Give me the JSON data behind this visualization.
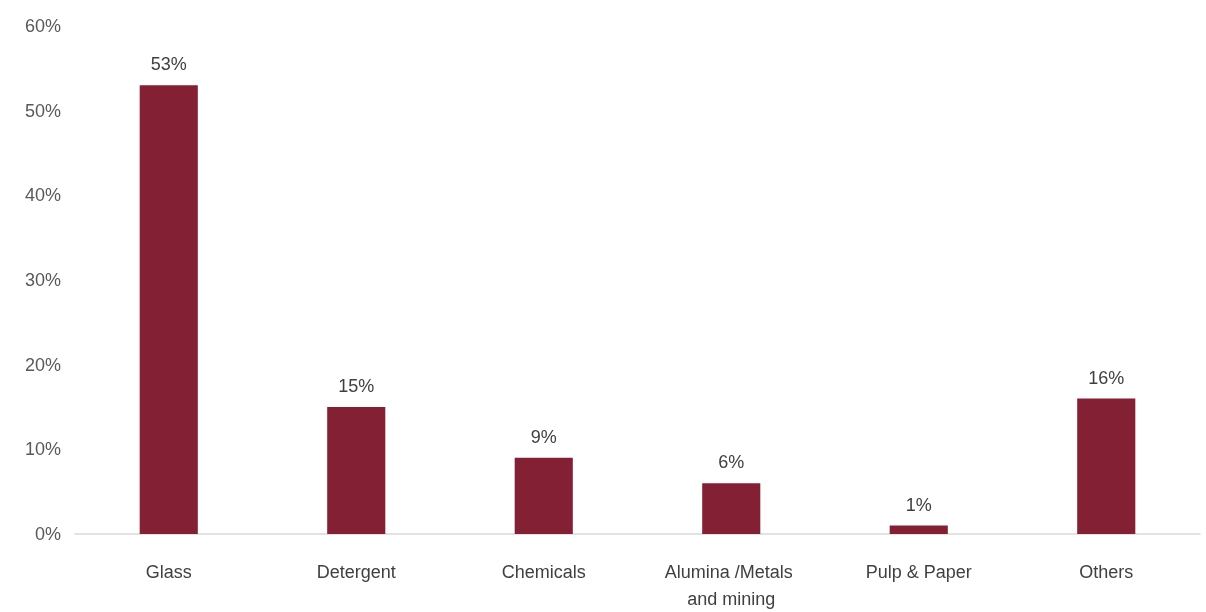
{
  "chart_data": {
    "type": "bar",
    "categories": [
      "Glass",
      "Detergent",
      "Chemicals",
      "Alumina /Metals and mining",
      "Pulp & Paper",
      "Others"
    ],
    "values": [
      53,
      15,
      9,
      6,
      1,
      16
    ],
    "value_labels": [
      "53%",
      "15%",
      "9%",
      "6%",
      "1%",
      "16%"
    ],
    "color": "#832034",
    "ylim": [
      0,
      60
    ],
    "yticks": [
      {
        "value": 0,
        "label": "0%"
      },
      {
        "value": 10,
        "label": "10%"
      },
      {
        "value": 20,
        "label": "20%"
      },
      {
        "value": 30,
        "label": "30%"
      },
      {
        "value": 40,
        "label": "40%"
      },
      {
        "value": 50,
        "label": "50%"
      },
      {
        "value": 60,
        "label": "60%"
      }
    ],
    "grid": false
  }
}
